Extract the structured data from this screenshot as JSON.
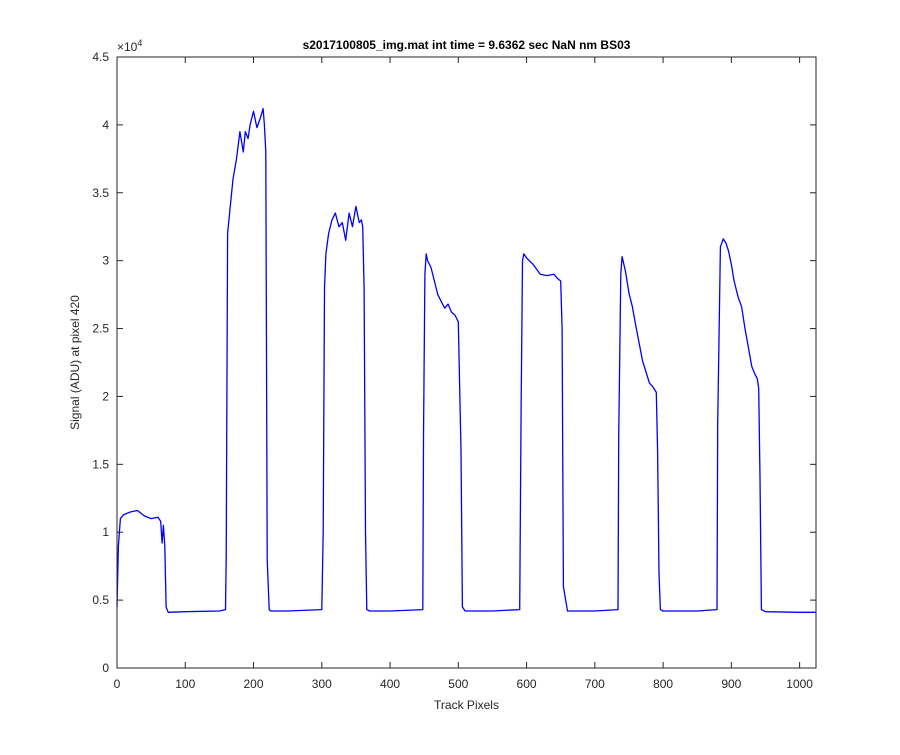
{
  "chart_data": {
    "type": "line",
    "title": "s2017100805_img.mat int time = 9.6362 sec  NaN nm BS03",
    "xlabel": "Track Pixels",
    "ylabel": "Signal (ADU) at pixel 420",
    "xlim": [
      0,
      1024
    ],
    "ylim": [
      0,
      45000
    ],
    "x_ticks": [
      "0",
      "100",
      "200",
      "300",
      "400",
      "500",
      "600",
      "700",
      "800",
      "900",
      "1000"
    ],
    "y_ticks": [
      "0",
      "0.5",
      "1",
      "1.5",
      "2",
      "2.5",
      "3",
      "3.5",
      "4",
      "4.5"
    ],
    "y_exponent_base": "×10",
    "y_exponent_power": "4",
    "grid": false,
    "line_color": "#0000ff",
    "series": [
      {
        "x": [
          0,
          2,
          5,
          10,
          20,
          30,
          40,
          50,
          60,
          64,
          66,
          68,
          70,
          72,
          75,
          100,
          150,
          159,
          160,
          162,
          165,
          170,
          175,
          180,
          185,
          188,
          192,
          195,
          200,
          205,
          210,
          214,
          216,
          218,
          220,
          223,
          225,
          250,
          300,
          302,
          304,
          306,
          310,
          315,
          320,
          325,
          330,
          335,
          340,
          345,
          350,
          355,
          358,
          360,
          362,
          364,
          366,
          370,
          400,
          448,
          449,
          451,
          453,
          455,
          460,
          465,
          470,
          475,
          480,
          485,
          490,
          495,
          500,
          504,
          506,
          510,
          550,
          590,
          592,
          594,
          596,
          600,
          610,
          620,
          630,
          640,
          645,
          650,
          652,
          654,
          660,
          700,
          734,
          735,
          738,
          740,
          745,
          750,
          755,
          760,
          765,
          770,
          775,
          780,
          785,
          790,
          792,
          794,
          796,
          800,
          850,
          879,
          880,
          884,
          888,
          892,
          896,
          900,
          904,
          910,
          915,
          920,
          925,
          930,
          935,
          938,
          940,
          942,
          944,
          950,
          1000,
          1024
        ],
        "y": [
          4500,
          9000,
          11000,
          11300,
          11500,
          11600,
          11200,
          11000,
          11100,
          10800,
          9200,
          10500,
          9000,
          4500,
          4100,
          4150,
          4200,
          4300,
          8000,
          32000,
          33500,
          36000,
          37500,
          39500,
          38000,
          39500,
          39000,
          40000,
          41000,
          39800,
          40500,
          41200,
          40000,
          38000,
          8000,
          4300,
          4200,
          4200,
          4300,
          10000,
          28000,
          30500,
          32000,
          33000,
          33500,
          32500,
          32800,
          31500,
          33500,
          32500,
          34000,
          32800,
          33000,
          32500,
          28000,
          10000,
          4300,
          4200,
          4200,
          4300,
          17000,
          29000,
          30500,
          30000,
          29500,
          28500,
          27500,
          27000,
          26500,
          26800,
          26200,
          26000,
          25500,
          16000,
          4500,
          4200,
          4200,
          4300,
          19000,
          30000,
          30500,
          30200,
          29700,
          29000,
          28900,
          29000,
          28700,
          28500,
          25000,
          6000,
          4200,
          4200,
          4300,
          17000,
          29000,
          30300,
          29200,
          27600,
          26600,
          25200,
          23900,
          22600,
          21800,
          21000,
          20700,
          20300,
          16000,
          7000,
          4300,
          4200,
          4200,
          4300,
          18000,
          31000,
          31600,
          31300,
          30700,
          29700,
          28500,
          27300,
          26600,
          25000,
          23600,
          22200,
          21600,
          21300,
          20600,
          14000,
          4300,
          4150,
          4100,
          4100
        ]
      }
    ]
  }
}
